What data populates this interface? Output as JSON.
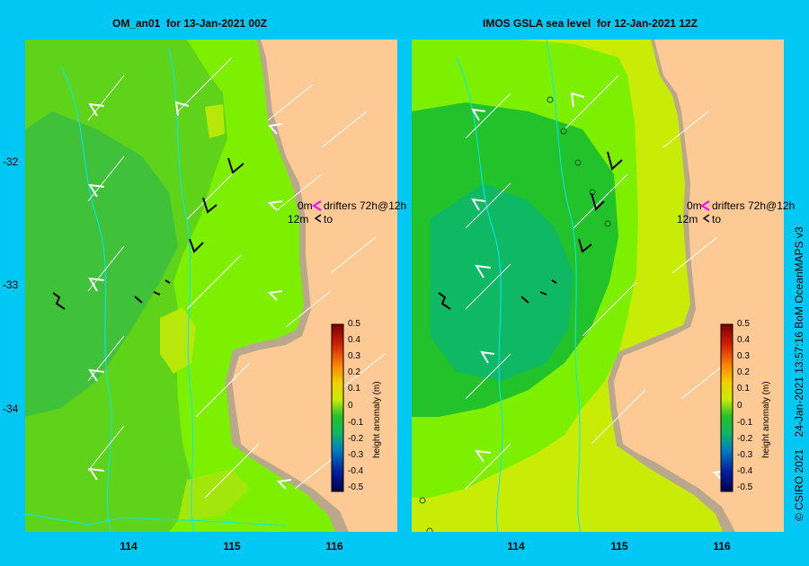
{
  "panels": [
    {
      "title": "OM_an01  for 13-Jan-2021 00Z"
    },
    {
      "title": "IMOS GSLA sea level  for 12-Jan-2021 12Z"
    }
  ],
  "legend": {
    "drifter_old": "0m",
    "drifter_old_text": "drifters 72h@12h",
    "drifter_new": "12m",
    "drifter_new_text": "to",
    "old_color": "#ff00ff",
    "new_color": "#000000"
  },
  "colorbar": {
    "title": "height anomaly (m)",
    "ticks": [
      "0.5",
      "0.4",
      "0.3",
      "0.2",
      "0.1",
      "0",
      "-0.1",
      "-0.2",
      "-0.3",
      "-0.4",
      "-0.5"
    ]
  },
  "x_ticks": [
    "114",
    "115",
    "116"
  ],
  "y_ticks": [
    "-32",
    "-33",
    "-34"
  ],
  "credit": "© CSIRO 2021    24-Jan-2021 13:57:16 BoM OceanMAPS v3",
  "colors": {
    "background": "#00c8f5",
    "land": "#fdca96",
    "shelf": "#b9a88c",
    "contour": "#00e8ff"
  }
}
